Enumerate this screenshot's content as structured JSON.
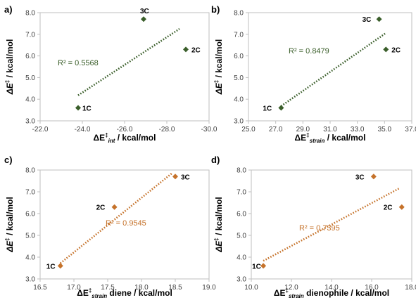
{
  "chart_data": [
    {
      "panel": "a)",
      "type": "scatter",
      "ylabel_main": "ΔE",
      "ylabel_sup": "‡",
      "ylabel_rest": " / kcal/mol",
      "xlabel_main": "ΔE",
      "xlabel_sup": "‡",
      "xlabel_sub": "int",
      "xlabel_rest": " / kcal/mol",
      "xlim": [
        -22.0,
        -30.0
      ],
      "x_reversed": true,
      "ylim": [
        3.0,
        8.0
      ],
      "xticks": [
        -22.0,
        -24.0,
        -26.0,
        -28.0,
        -30.0
      ],
      "xtick_labels": [
        "-22.0",
        "-24.0",
        "-26.0",
        "-28.0",
        "-30.0"
      ],
      "yticks": [
        3.0,
        4.0,
        5.0,
        6.0,
        7.0,
        8.0
      ],
      "ytick_labels": [
        "3.0",
        "4.0",
        "5.0",
        "6.0",
        "7.0",
        "8.0"
      ],
      "points": [
        {
          "label": "1C",
          "x": -23.8,
          "y": 3.6
        },
        {
          "label": "3C",
          "x": -26.9,
          "y": 7.7
        },
        {
          "label": "2C",
          "x": -28.9,
          "y": 6.3
        }
      ],
      "trendline": {
        "x": [
          -23.8,
          -28.6
        ],
        "y": [
          4.18,
          7.25
        ]
      },
      "r2_text": "R² = 0.5568",
      "color": "#3a5e2a"
    },
    {
      "panel": "b)",
      "type": "scatter",
      "ylabel_main": "ΔE",
      "ylabel_sup": "‡",
      "ylabel_rest": " / kcal/mol",
      "xlabel_main": "ΔE",
      "xlabel_sup": "‡",
      "xlabel_sub": "strain",
      "xlabel_rest": " / kcal/mol",
      "xlim": [
        25.0,
        37.0
      ],
      "x_reversed": false,
      "ylim": [
        3.0,
        8.0
      ],
      "xticks": [
        25.0,
        27.0,
        29.0,
        31.0,
        33.0,
        35.0,
        37.0
      ],
      "xtick_labels": [
        "25.0",
        "27.0",
        "29.0",
        "31.0",
        "33.0",
        "35.0",
        "37.0"
      ],
      "yticks": [
        3.0,
        4.0,
        5.0,
        6.0,
        7.0,
        8.0
      ],
      "ytick_labels": [
        "3.0",
        "4.0",
        "5.0",
        "6.0",
        "7.0",
        "8.0"
      ],
      "points": [
        {
          "label": "1C",
          "x": 27.4,
          "y": 3.6
        },
        {
          "label": "3C",
          "x": 34.6,
          "y": 7.7
        },
        {
          "label": "2C",
          "x": 35.1,
          "y": 6.3
        }
      ],
      "trendline": {
        "x": [
          27.4,
          35.1
        ],
        "y": [
          3.68,
          7.06
        ]
      },
      "r2_text": "R² = 0.8479",
      "color": "#3a5e2a"
    },
    {
      "panel": "c)",
      "type": "scatter",
      "ylabel_main": "ΔE",
      "ylabel_sup": "‡",
      "ylabel_rest": " / kcal/mol",
      "xlabel_main": "ΔE",
      "xlabel_sup": "‡",
      "xlabel_sub": "strain",
      "xlabel_rest": " diene / kcal/mol",
      "xlim": [
        16.5,
        19.0
      ],
      "x_reversed": false,
      "ylim": [
        3.0,
        8.0
      ],
      "xticks": [
        16.5,
        17.0,
        17.5,
        18.0,
        18.5,
        19.0
      ],
      "xtick_labels": [
        "16.5",
        "17.0",
        "17.5",
        "18.0",
        "18.5",
        "19.0"
      ],
      "yticks": [
        3.0,
        4.0,
        5.0,
        6.0,
        7.0,
        8.0
      ],
      "ytick_labels": [
        "3.0",
        "4.0",
        "5.0",
        "6.0",
        "7.0",
        "8.0"
      ],
      "points": [
        {
          "label": "1C",
          "x": 16.8,
          "y": 3.6
        },
        {
          "label": "2C",
          "x": 17.6,
          "y": 6.3
        },
        {
          "label": "3C",
          "x": 18.5,
          "y": 7.7
        }
      ],
      "trendline": {
        "x": [
          16.8,
          18.45
        ],
        "y": [
          3.72,
          7.85
        ]
      },
      "r2_text": "R² = 0.9545",
      "color": "#c5722a"
    },
    {
      "panel": "d)",
      "type": "scatter",
      "ylabel_main": "ΔE",
      "ylabel_sup": "‡",
      "ylabel_rest": " / kcal/mol",
      "xlabel_main": "ΔE",
      "xlabel_sup": "‡",
      "xlabel_sub": "strain",
      "xlabel_rest": " dienophile / kcal/mol",
      "xlim": [
        10.0,
        18.0
      ],
      "x_reversed": false,
      "ylim": [
        3.0,
        8.0
      ],
      "xticks": [
        10.0,
        12.0,
        14.0,
        16.0,
        18.0
      ],
      "xtick_labels": [
        "10.0",
        "12.0",
        "14.0",
        "16.0",
        "18.0"
      ],
      "yticks": [
        3.0,
        4.0,
        5.0,
        6.0,
        7.0,
        8.0
      ],
      "ytick_labels": [
        "3.0",
        "4.0",
        "5.0",
        "6.0",
        "7.0",
        "8.0"
      ],
      "points": [
        {
          "label": "1C",
          "x": 10.6,
          "y": 3.6
        },
        {
          "label": "3C",
          "x": 16.1,
          "y": 7.7
        },
        {
          "label": "2C",
          "x": 17.5,
          "y": 6.3
        }
      ],
      "trendline": {
        "x": [
          10.6,
          17.4
        ],
        "y": [
          3.83,
          7.17
        ]
      },
      "r2_text": "R² = 0.7395",
      "color": "#c5722a"
    }
  ]
}
